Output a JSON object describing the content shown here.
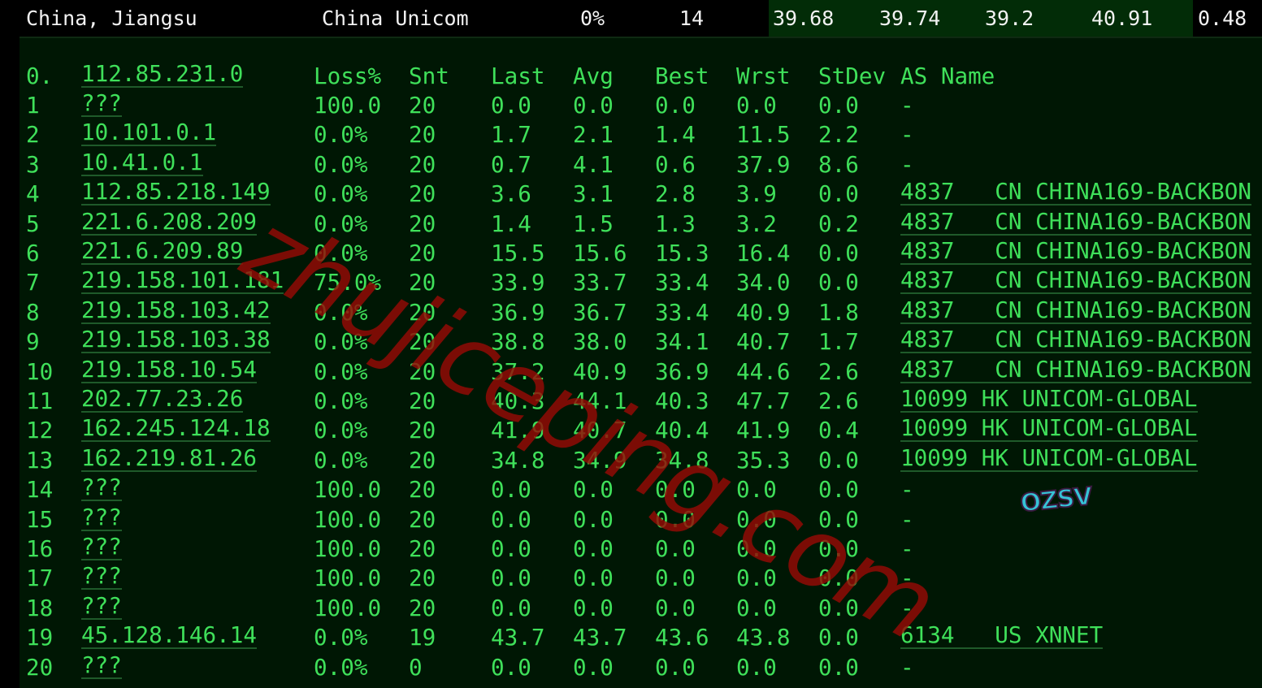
{
  "summary": {
    "location": "China, Jiangsu",
    "isp": "China Unicom",
    "loss": "0%",
    "sent": "14",
    "last": "39.68",
    "avg": "39.74",
    "best": "39.2",
    "worst": "40.91",
    "stdev": "0.48"
  },
  "header": {
    "idx": "0.",
    "host": "112.85.231.0",
    "loss": "Loss%",
    "snt": "Snt",
    "last": "Last",
    "avg": "Avg",
    "best": "Best",
    "wrst": "Wrst",
    "stdev": "StDev",
    "as": "AS Name"
  },
  "hops": [
    {
      "idx": "1",
      "host": "???",
      "loss": "100.0",
      "snt": "20",
      "last": "0.0",
      "avg": "0.0",
      "best": "0.0",
      "wrst": "0.0",
      "stdev": "0.0",
      "asn": "-",
      "cc": "",
      "name": ""
    },
    {
      "idx": "2",
      "host": "10.101.0.1",
      "loss": "0.0%",
      "snt": "20",
      "last": "1.7",
      "avg": "2.1",
      "best": "1.4",
      "wrst": "11.5",
      "stdev": "2.2",
      "asn": "-",
      "cc": "",
      "name": ""
    },
    {
      "idx": "3",
      "host": "10.41.0.1",
      "loss": "0.0%",
      "snt": "20",
      "last": "0.7",
      "avg": "4.1",
      "best": "0.6",
      "wrst": "37.9",
      "stdev": "8.6",
      "asn": "-",
      "cc": "",
      "name": ""
    },
    {
      "idx": "4",
      "host": "112.85.218.149",
      "loss": "0.0%",
      "snt": "20",
      "last": "3.6",
      "avg": "3.1",
      "best": "2.8",
      "wrst": "3.9",
      "stdev": "0.0",
      "asn": "4837",
      "cc": "CN",
      "name": "CHINA169-BACKBON"
    },
    {
      "idx": "5",
      "host": "221.6.208.209",
      "loss": "0.0%",
      "snt": "20",
      "last": "1.4",
      "avg": "1.5",
      "best": "1.3",
      "wrst": "3.2",
      "stdev": "0.2",
      "asn": "4837",
      "cc": "CN",
      "name": "CHINA169-BACKBON"
    },
    {
      "idx": "6",
      "host": "221.6.209.89",
      "loss": "0.0%",
      "snt": "20",
      "last": "15.5",
      "avg": "15.6",
      "best": "15.3",
      "wrst": "16.4",
      "stdev": "0.0",
      "asn": "4837",
      "cc": "CN",
      "name": "CHINA169-BACKBON"
    },
    {
      "idx": "7",
      "host": "219.158.101.181",
      "loss": "75.0%",
      "snt": "20",
      "last": "33.9",
      "avg": "33.7",
      "best": "33.4",
      "wrst": "34.0",
      "stdev": "0.0",
      "asn": "4837",
      "cc": "CN",
      "name": "CHINA169-BACKBON"
    },
    {
      "idx": "8",
      "host": "219.158.103.42",
      "loss": "0.0%",
      "snt": "20",
      "last": "36.9",
      "avg": "36.7",
      "best": "33.4",
      "wrst": "40.9",
      "stdev": "1.8",
      "asn": "4837",
      "cc": "CN",
      "name": "CHINA169-BACKBON"
    },
    {
      "idx": "9",
      "host": "219.158.103.38",
      "loss": "0.0%",
      "snt": "20",
      "last": "38.8",
      "avg": "38.0",
      "best": "34.1",
      "wrst": "40.7",
      "stdev": "1.7",
      "asn": "4837",
      "cc": "CN",
      "name": "CHINA169-BACKBON"
    },
    {
      "idx": "10",
      "host": "219.158.10.54",
      "loss": "0.0%",
      "snt": "20",
      "last": "37.2",
      "avg": "40.9",
      "best": "36.9",
      "wrst": "44.6",
      "stdev": "2.6",
      "asn": "4837",
      "cc": "CN",
      "name": "CHINA169-BACKBON"
    },
    {
      "idx": "11",
      "host": "202.77.23.26",
      "loss": "0.0%",
      "snt": "20",
      "last": "40.3",
      "avg": "44.1",
      "best": "40.3",
      "wrst": "47.7",
      "stdev": "2.6",
      "asn": "10099",
      "cc": "HK",
      "name": "UNICOM-GLOBAL"
    },
    {
      "idx": "12",
      "host": "162.245.124.18",
      "loss": "0.0%",
      "snt": "20",
      "last": "41.9",
      "avg": "40.7",
      "best": "40.4",
      "wrst": "41.9",
      "stdev": "0.4",
      "asn": "10099",
      "cc": "HK",
      "name": "UNICOM-GLOBAL"
    },
    {
      "idx": "13",
      "host": "162.219.81.26",
      "loss": "0.0%",
      "snt": "20",
      "last": "34.8",
      "avg": "34.9",
      "best": "34.8",
      "wrst": "35.3",
      "stdev": "0.0",
      "asn": "10099",
      "cc": "HK",
      "name": "UNICOM-GLOBAL"
    },
    {
      "idx": "14",
      "host": "???",
      "loss": "100.0",
      "snt": "20",
      "last": "0.0",
      "avg": "0.0",
      "best": "0.0",
      "wrst": "0.0",
      "stdev": "0.0",
      "asn": "-",
      "cc": "",
      "name": ""
    },
    {
      "idx": "15",
      "host": "???",
      "loss": "100.0",
      "snt": "20",
      "last": "0.0",
      "avg": "0.0",
      "best": "0.0",
      "wrst": "0.0",
      "stdev": "0.0",
      "asn": "-",
      "cc": "",
      "name": ""
    },
    {
      "idx": "16",
      "host": "???",
      "loss": "100.0",
      "snt": "20",
      "last": "0.0",
      "avg": "0.0",
      "best": "0.0",
      "wrst": "0.0",
      "stdev": "0.0",
      "asn": "-",
      "cc": "",
      "name": ""
    },
    {
      "idx": "17",
      "host": "???",
      "loss": "100.0",
      "snt": "20",
      "last": "0.0",
      "avg": "0.0",
      "best": "0.0",
      "wrst": "0.0",
      "stdev": "0.0",
      "asn": "-",
      "cc": "",
      "name": ""
    },
    {
      "idx": "18",
      "host": "???",
      "loss": "100.0",
      "snt": "20",
      "last": "0.0",
      "avg": "0.0",
      "best": "0.0",
      "wrst": "0.0",
      "stdev": "0.0",
      "asn": "-",
      "cc": "",
      "name": ""
    },
    {
      "idx": "19",
      "host": "45.128.146.14",
      "loss": "0.0%",
      "snt": "19",
      "last": "43.7",
      "avg": "43.7",
      "best": "43.6",
      "wrst": "43.8",
      "stdev": "0.0",
      "asn": "6134",
      "cc": "US",
      "name": "XNNET"
    },
    {
      "idx": "20",
      "host": "???",
      "loss": "0.0%",
      "snt": "0",
      "last": "0.0",
      "avg": "0.0",
      "best": "0.0",
      "wrst": "0.0",
      "stdev": "0.0",
      "asn": "-",
      "cc": "",
      "name": ""
    }
  ],
  "watermark": "zhujiceping.com",
  "logo": "OZSV",
  "colors": {
    "text": "#3fe05a",
    "panel": "#001704",
    "highlight": "#022c07",
    "watermark": "#960a06"
  }
}
